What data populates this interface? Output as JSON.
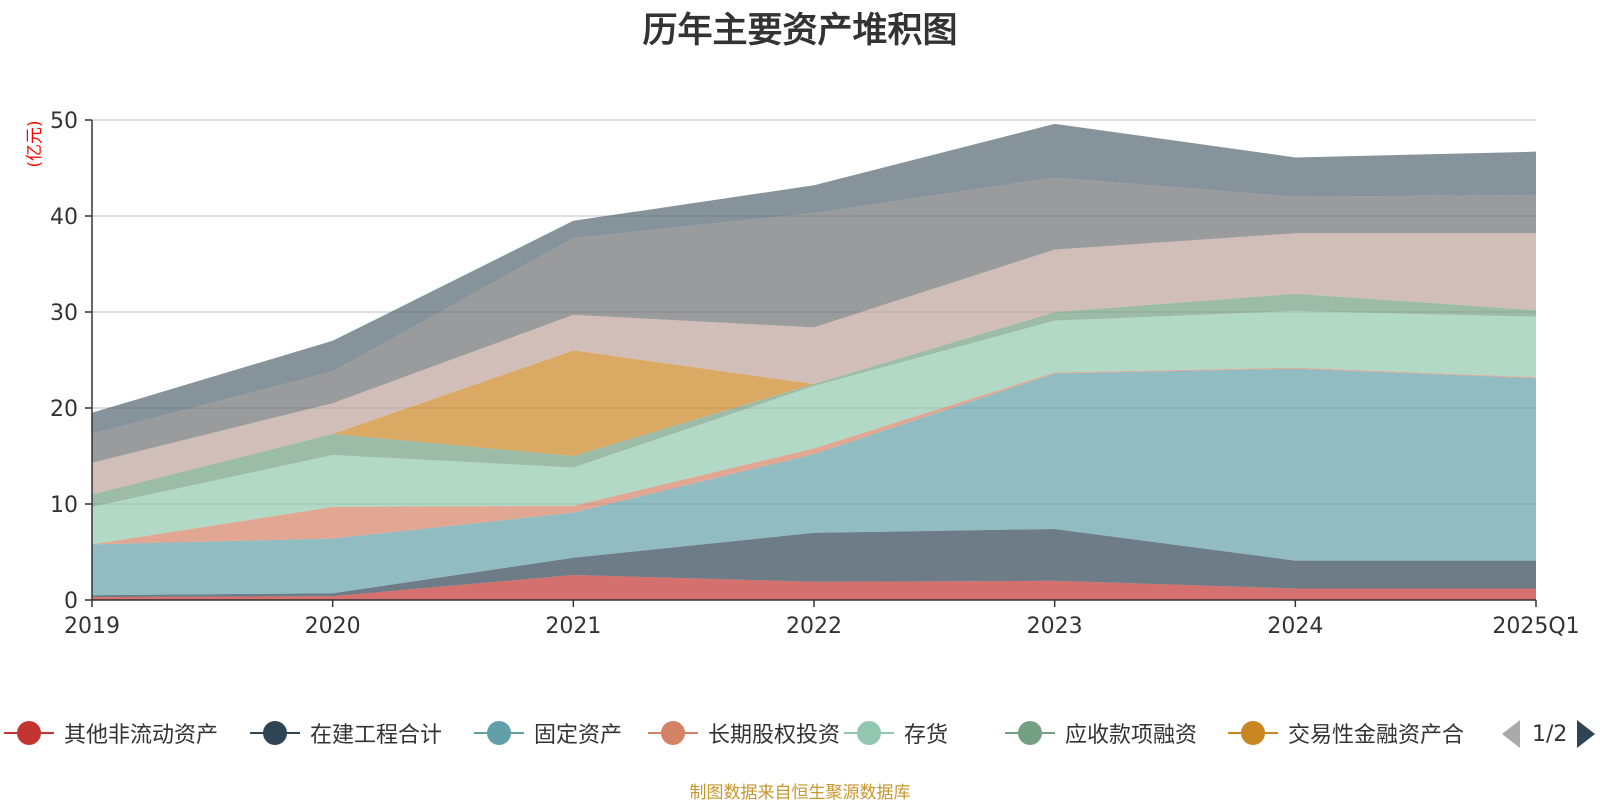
{
  "title": "历年主要资产堆积图",
  "unit_label": "(亿元)",
  "source_note": "制图数据来自恒生聚源数据库",
  "legend_page": "1/2",
  "chart_data": {
    "type": "area",
    "stacked": true,
    "title": "历年主要资产堆积图",
    "ylabel": "(亿元)",
    "xlabel": "",
    "ylim": [
      0,
      50
    ],
    "yticks": [
      0,
      10,
      20,
      30,
      40,
      50
    ],
    "grid": true,
    "legend_position": "bottom",
    "categories": [
      "2019",
      "2020",
      "2021",
      "2022",
      "2023",
      "2024",
      "2025Q1"
    ],
    "series": [
      {
        "name": "其他非流动资产",
        "color": "#c23531",
        "values": [
          0.3,
          0.4,
          2.6,
          1.9,
          2.0,
          1.2,
          1.2
        ],
        "in_legend": true
      },
      {
        "name": "在建工程合计",
        "color": "#2f4554",
        "values": [
          0.2,
          0.3,
          1.8,
          5.1,
          5.4,
          2.9,
          2.9
        ],
        "in_legend": true
      },
      {
        "name": "固定资产",
        "color": "#61a0a8",
        "values": [
          5.3,
          5.7,
          4.7,
          8.2,
          16.2,
          20.0,
          19.0
        ],
        "in_legend": true
      },
      {
        "name": "长期股权投资",
        "color": "#d48265",
        "values": [
          0.0,
          3.3,
          0.7,
          0.6,
          0.1,
          0.1,
          0.1
        ],
        "in_legend": true
      },
      {
        "name": "存货",
        "color": "#91c7ae",
        "values": [
          3.9,
          5.4,
          4.0,
          6.5,
          5.4,
          5.9,
          6.3
        ],
        "in_legend": true
      },
      {
        "name": "应收款项融资",
        "color": "#749f83",
        "values": [
          1.3,
          2.2,
          1.2,
          0.2,
          0.9,
          1.8,
          0.7
        ],
        "in_legend": true
      },
      {
        "name": "交易性金融资产合",
        "color": "#ca8622",
        "values": [
          0.0,
          0.0,
          11.0,
          0.0,
          0.0,
          0.0,
          0.0
        ],
        "in_legend": true
      },
      {
        "name": "",
        "color": "#bda29a",
        "values": [
          3.3,
          3.2,
          3.7,
          5.9,
          6.5,
          6.3,
          8.0
        ],
        "in_legend": false
      },
      {
        "name": "",
        "color": "#6e7074",
        "values": [
          3.0,
          3.3,
          8.0,
          11.9,
          7.5,
          3.8,
          4.0
        ],
        "in_legend": false
      },
      {
        "name": "",
        "color": "#546570",
        "values": [
          2.2,
          3.2,
          1.8,
          2.9,
          5.6,
          4.1,
          4.5
        ],
        "in_legend": false
      }
    ]
  }
}
